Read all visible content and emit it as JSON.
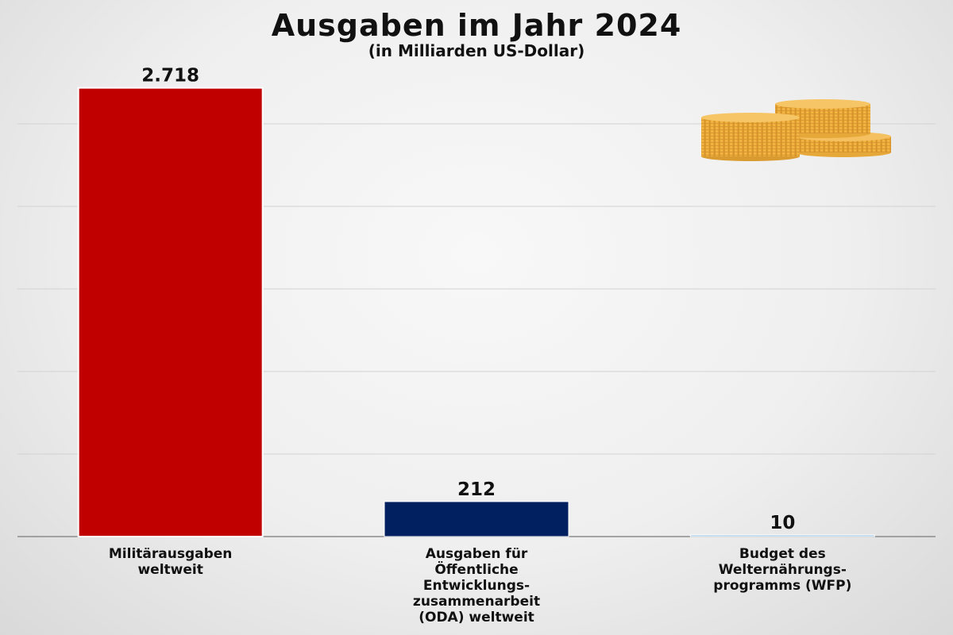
{
  "chart_data": {
    "type": "bar",
    "title": "Ausgaben im Jahr 2024",
    "subtitle": "(in Milliarden US-Dollar)",
    "categories": [
      "Militärausgaben\nweltweit",
      "Ausgaben für\nÖffentliche\nEntwicklungs-\nzusammenarbeit\n(ODA) weltweit",
      "Budget des\nWelternährungs-\nprogramms (WFP)"
    ],
    "values": [
      2718,
      212,
      10
    ],
    "value_labels": [
      "2.718",
      "212",
      "10"
    ],
    "colors": [
      "#c00000",
      "#002060",
      "#9dc3e6"
    ],
    "ylim": [
      0,
      3000
    ],
    "grid": true
  },
  "decoration": {
    "icon": "coin-stacks-icon"
  }
}
